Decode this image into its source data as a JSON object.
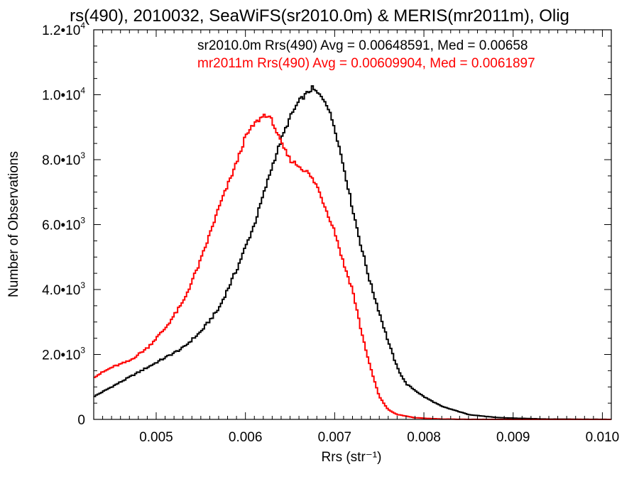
{
  "chart_data": {
    "type": "line",
    "title": "rs(490), 2010032, SeaWiFS(sr2010.0m) & MERIS(mr2011m), Olig",
    "xlabel": "Rrs (str⁻¹)",
    "ylabel": "Number of Observations",
    "xlim": [
      0.0043,
      0.0101
    ],
    "ylim": [
      0,
      12000
    ],
    "x_ticks": [
      "0.005",
      "0.006",
      "0.007",
      "0.008",
      "0.009",
      "0.010"
    ],
    "x_tick_values": [
      0.005,
      0.006,
      0.007,
      0.008,
      0.009,
      0.01
    ],
    "y_ticks": [
      {
        "value": 0,
        "mant": "0",
        "exp": ""
      },
      {
        "value": 2000,
        "mant": "2.0•10",
        "exp": "3"
      },
      {
        "value": 4000,
        "mant": "4.0•10",
        "exp": "3"
      },
      {
        "value": 6000,
        "mant": "6.0•10",
        "exp": "3"
      },
      {
        "value": 8000,
        "mant": "8.0•10",
        "exp": "3"
      },
      {
        "value": 10000,
        "mant": "1.0•10",
        "exp": "4"
      },
      {
        "value": 12000,
        "mant": "1.2•10",
        "exp": "4"
      }
    ],
    "grid": false,
    "legend_position": "top-right",
    "series": [
      {
        "name": "sr2010.0m Rrs(490) Avg = 0.00648591, Med = 0.00658",
        "color": "#000000",
        "x": [
          0.0043,
          0.0045,
          0.0047,
          0.0049,
          0.0051,
          0.0053,
          0.0055,
          0.0057,
          0.0059,
          0.0061,
          0.0063,
          0.0064,
          0.0065,
          0.0066,
          0.00675,
          0.0069,
          0.007,
          0.0071,
          0.0072,
          0.0073,
          0.0074,
          0.0075,
          0.0076,
          0.0077,
          0.0078,
          0.0079,
          0.008,
          0.0082,
          0.0085,
          0.0088,
          0.0091,
          0.0094,
          0.0101
        ],
        "y": [
          700,
          1000,
          1300,
          1600,
          1900,
          2200,
          2700,
          3400,
          4600,
          6000,
          7800,
          8600,
          9300,
          9800,
          10200,
          9800,
          9000,
          7800,
          6500,
          5300,
          4200,
          3300,
          2400,
          1600,
          1100,
          900,
          700,
          400,
          150,
          60,
          30,
          10,
          0
        ]
      },
      {
        "name": "mr2011m Rrs(490) Avg = 0.00609904, Med = 0.0061897",
        "color": "#ff0000",
        "x": [
          0.0043,
          0.0045,
          0.0047,
          0.0049,
          0.0051,
          0.0053,
          0.0055,
          0.0057,
          0.0059,
          0.006,
          0.0061,
          0.00622,
          0.0063,
          0.0064,
          0.0065,
          0.0066,
          0.0067,
          0.0068,
          0.0069,
          0.007,
          0.0071,
          0.0072,
          0.0073,
          0.0074,
          0.0075,
          0.0076,
          0.0077,
          0.0079,
          0.0082,
          0.0086,
          0.0101
        ],
        "y": [
          1300,
          1600,
          1800,
          2200,
          2800,
          3600,
          4900,
          6500,
          7900,
          8700,
          9100,
          9400,
          9200,
          8500,
          8000,
          7800,
          7600,
          7200,
          6500,
          5800,
          4800,
          4000,
          2700,
          1600,
          700,
          300,
          150,
          50,
          10,
          0,
          0
        ]
      }
    ]
  }
}
